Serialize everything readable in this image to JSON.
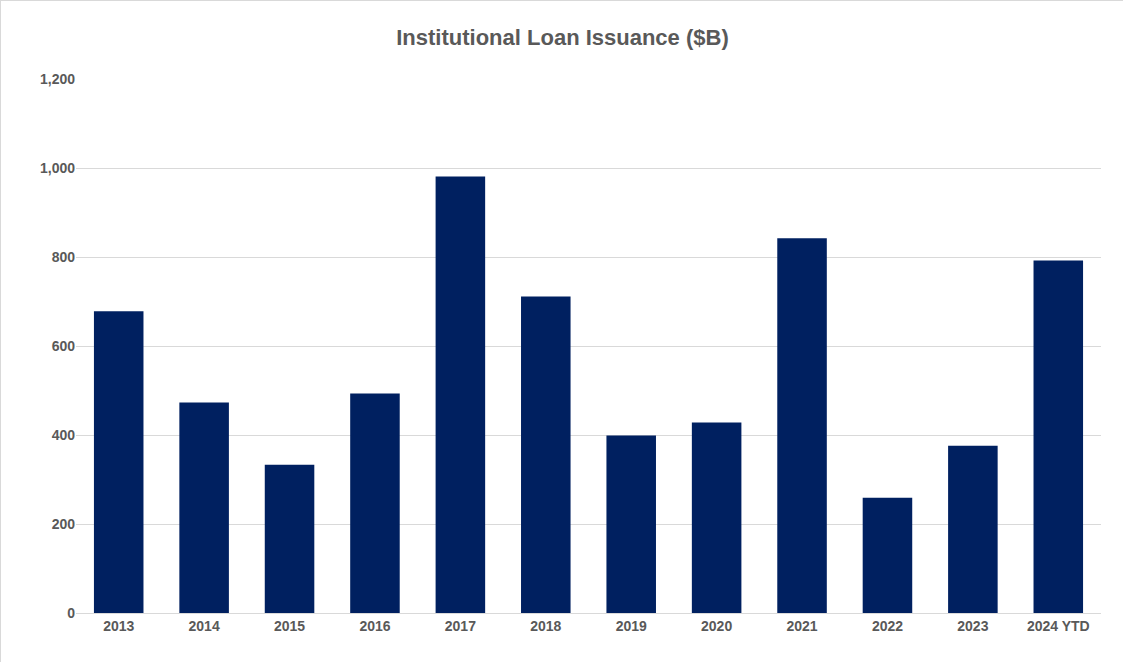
{
  "chart_data": {
    "type": "bar",
    "title": "Institutional Loan Issuance ($B)",
    "categories": [
      "2013",
      "2014",
      "2015",
      "2016",
      "2017",
      "2018",
      "2019",
      "2020",
      "2021",
      "2022",
      "2023",
      "2024 YTD"
    ],
    "values": [
      678,
      473,
      333,
      493,
      981,
      711,
      399,
      428,
      842,
      259,
      376,
      792
    ],
    "color": "#002060",
    "ylim": [
      0,
      1200
    ],
    "yticks": [
      0,
      200,
      400,
      600,
      800,
      {
        "value": 1000,
        "label": "1,000"
      },
      {
        "value": 1200,
        "label": "1,200"
      }
    ],
    "grid": true
  }
}
